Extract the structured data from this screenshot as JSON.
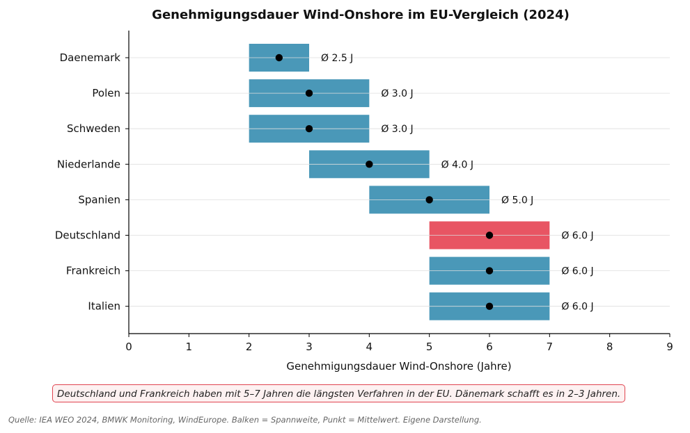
{
  "chart_data": {
    "type": "range-bar",
    "title": "Genehmigungsdauer Wind-Onshore im EU-Vergleich (2024)",
    "xlabel": "Genehmigungsdauer Wind-Onshore (Jahre)",
    "ylabel": "",
    "xlim": [
      0,
      9
    ],
    "xticks": [
      0,
      1,
      2,
      3,
      4,
      5,
      6,
      7,
      8,
      9
    ],
    "grid": "horizontal",
    "categories": [
      "Daenemark",
      "Polen",
      "Schweden",
      "Niederlande",
      "Spanien",
      "Deutschland",
      "Frankreich",
      "Italien"
    ],
    "ranges": [
      [
        2,
        3
      ],
      [
        2,
        4
      ],
      [
        2,
        4
      ],
      [
        3,
        5
      ],
      [
        4,
        6
      ],
      [
        5,
        7
      ],
      [
        5,
        7
      ],
      [
        5,
        7
      ]
    ],
    "means": [
      2.5,
      3.0,
      3.0,
      4.0,
      5.0,
      6.0,
      6.0,
      6.0
    ],
    "data_labels": [
      "Ø 2.5 J",
      "Ø 3.0 J",
      "Ø 3.0 J",
      "Ø 4.0 J",
      "Ø 5.0 J",
      "Ø 6.0 J",
      "Ø 6.0 J",
      "Ø 6.0 J"
    ],
    "highlight": "Deutschland",
    "colors": {
      "bar": "#4a98b8",
      "highlight": "#e85563",
      "mean": "#000000"
    }
  },
  "annotation": "Deutschland und Frankreich haben mit 5–7 Jahren die längsten Verfahren in der EU. Dänemark schafft es in 2–3 Jahren.",
  "source": "Quelle: IEA WEO 2024, BMWK Monitoring, WindEurope. Balken = Spannweite, Punkt = Mittelwert. Eigene Darstellung."
}
